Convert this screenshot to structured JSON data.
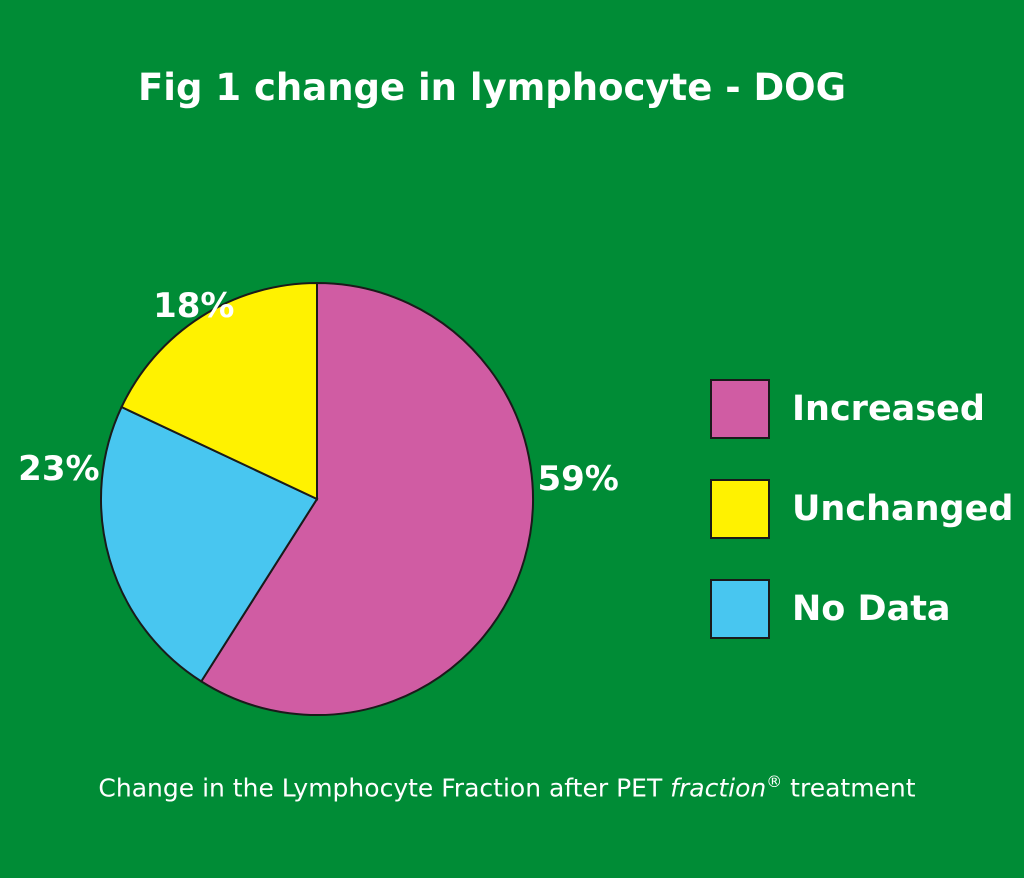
{
  "chart_data": {
    "type": "pie",
    "title": "Fig 1 change in lymphocyte - DOG",
    "categories": [
      "Increased",
      "Unchanged",
      "No Data"
    ],
    "values": [
      59,
      18,
      23
    ],
    "data_labels": [
      "59%",
      "18%",
      "23%"
    ],
    "colors": [
      "#d05ca3",
      "#fff200",
      "#48c6f0"
    ],
    "legend": "right",
    "caption": {
      "before": "Change in the Lymphocyte Fraction after PET ",
      "brand": "fraction",
      "mark": "®",
      "after": " treatment"
    }
  }
}
